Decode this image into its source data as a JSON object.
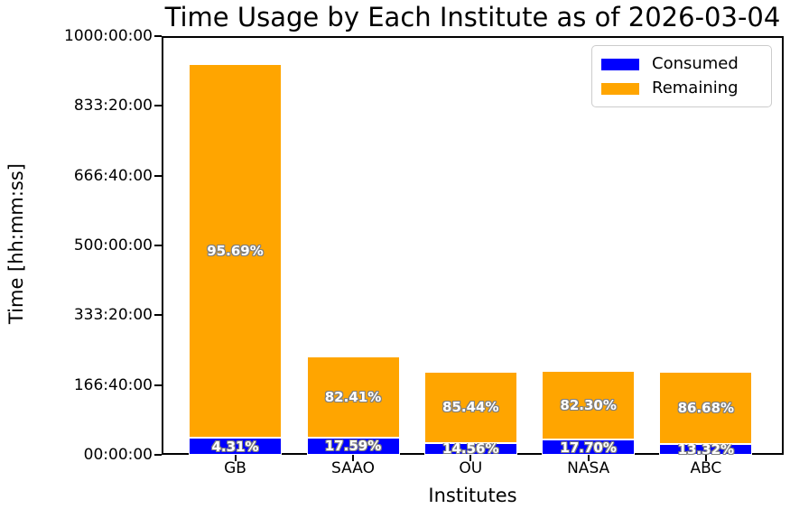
{
  "title": "Time Usage by Each Institute as of 2026-03-04",
  "axes": {
    "x_label": "Institutes",
    "y_label": "Time [hh:mm:ss]",
    "y_ticks": [
      {
        "value": 0,
        "label": "00:00:00"
      },
      {
        "value": 166.667,
        "label": "166:40:00"
      },
      {
        "value": 333.333,
        "label": "333:20:00"
      },
      {
        "value": 500,
        "label": "500:00:00"
      },
      {
        "value": 666.667,
        "label": "666:40:00"
      },
      {
        "value": 833.333,
        "label": "833:20:00"
      },
      {
        "value": 1000,
        "label": "1000:00:00"
      }
    ]
  },
  "legend": {
    "items": [
      {
        "label": "Consumed",
        "color": "#0000ff"
      },
      {
        "label": "Remaining",
        "color": "#ffa500"
      }
    ]
  },
  "colors": {
    "consumed": "#0000ff",
    "remaining": "#ffa500",
    "label_text": "#ffffff",
    "label_outline": "#7f7f7f"
  },
  "chart_data": {
    "type": "bar",
    "stacked": true,
    "title": "Time Usage by Each Institute as of 2026-03-04",
    "xlabel": "Institutes",
    "ylabel": "Time [hh:mm:ss]",
    "ylim": [
      0,
      1000
    ],
    "y_unit": "hours",
    "grid": false,
    "legend_position": "upper right",
    "categories": [
      "GB",
      "SAAO",
      "OU",
      "NASA",
      "ABC"
    ],
    "totals_hours": [
      934,
      236,
      199,
      201,
      198
    ],
    "series": [
      {
        "name": "Consumed",
        "color": "#0000ff",
        "values_hours": [
          40.3,
          41.5,
          29.0,
          35.6,
          26.4
        ],
        "percent_labels": [
          "4.31%",
          "17.59%",
          "14.56%",
          "17.70%",
          "13.32%"
        ]
      },
      {
        "name": "Remaining",
        "color": "#ffa500",
        "values_hours": [
          893.7,
          194.5,
          170.0,
          165.4,
          171.6
        ],
        "percent_labels": [
          "95.69%",
          "82.41%",
          "85.44%",
          "82.30%",
          "86.68%"
        ]
      }
    ]
  }
}
